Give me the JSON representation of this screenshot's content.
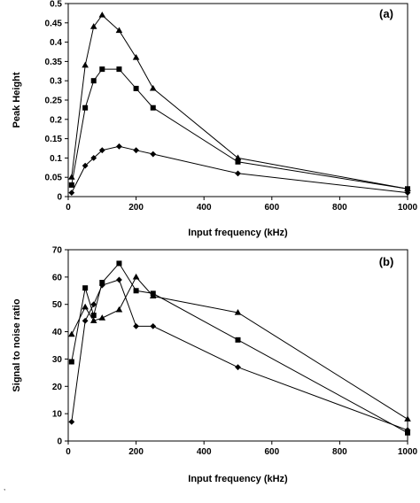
{
  "stray_mark": ",",
  "chart_data": [
    {
      "type": "line",
      "panel_label": "(a)",
      "xlabel": "Input frequency (kHz)",
      "ylabel": "Peak Height",
      "xlim": [
        0,
        1000
      ],
      "ylim": [
        0,
        0.5
      ],
      "xticks": [
        0,
        200,
        400,
        600,
        800,
        1000
      ],
      "yticks": [
        0,
        0.05,
        0.1,
        0.15,
        0.2,
        0.25,
        0.3,
        0.35,
        0.4,
        0.45,
        0.5
      ],
      "grid": false,
      "legend": "none",
      "series": [
        {
          "marker": "triangle",
          "color": "#000000",
          "x": [
            10,
            50,
            75,
            100,
            150,
            200,
            250,
            500,
            1000
          ],
          "y": [
            0.05,
            0.34,
            0.44,
            0.47,
            0.43,
            0.36,
            0.28,
            0.1,
            0.02
          ]
        },
        {
          "marker": "square",
          "color": "#000000",
          "x": [
            10,
            50,
            75,
            100,
            150,
            200,
            250,
            500,
            1000
          ],
          "y": [
            0.03,
            0.23,
            0.3,
            0.33,
            0.33,
            0.28,
            0.23,
            0.09,
            0.02
          ]
        },
        {
          "marker": "diamond",
          "color": "#000000",
          "x": [
            10,
            50,
            75,
            100,
            150,
            200,
            250,
            500,
            1000
          ],
          "y": [
            0.01,
            0.08,
            0.1,
            0.12,
            0.13,
            0.12,
            0.11,
            0.06,
            0.01
          ]
        }
      ]
    },
    {
      "type": "line",
      "panel_label": "(b)",
      "xlabel": "Input frequency (kHz)",
      "ylabel": "Signal to noise ratio",
      "xlim": [
        0,
        1000
      ],
      "ylim": [
        0,
        70
      ],
      "xticks": [
        0,
        200,
        400,
        600,
        800,
        1000
      ],
      "yticks": [
        0,
        10,
        20,
        30,
        40,
        50,
        60,
        70
      ],
      "grid": false,
      "legend": "none",
      "series": [
        {
          "marker": "triangle",
          "color": "#000000",
          "x": [
            10,
            50,
            75,
            100,
            150,
            200,
            250,
            500,
            1000
          ],
          "y": [
            39,
            49,
            44,
            45,
            48,
            60,
            53,
            47,
            8
          ]
        },
        {
          "marker": "square",
          "color": "#000000",
          "x": [
            10,
            50,
            75,
            100,
            150,
            200,
            250,
            500,
            1000
          ],
          "y": [
            29,
            56,
            46,
            58,
            65,
            55,
            54,
            37,
            3
          ]
        },
        {
          "marker": "diamond",
          "color": "#000000",
          "x": [
            10,
            50,
            75,
            100,
            150,
            200,
            250,
            500,
            1000
          ],
          "y": [
            7,
            44,
            50,
            57,
            59,
            42,
            42,
            27,
            4
          ]
        }
      ]
    }
  ]
}
